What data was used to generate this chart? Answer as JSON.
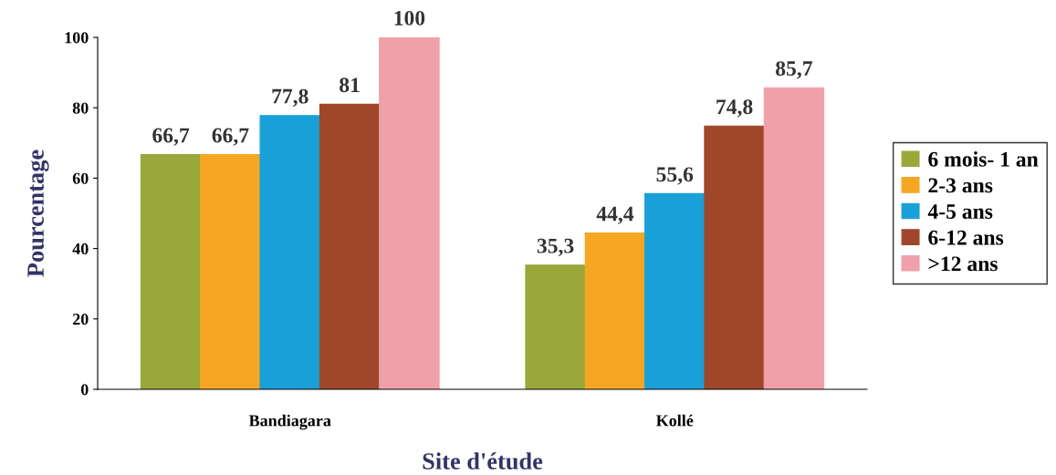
{
  "chart_data": {
    "type": "bar",
    "xlabel": "Site d'étude",
    "ylabel": "Pourcentage",
    "categories": [
      "Bandiagara",
      "Kollé"
    ],
    "series": [
      {
        "name": "6 mois- 1 an",
        "color": "#9aa83a",
        "values": [
          66.7,
          35.3
        ],
        "value_labels": [
          "66,7",
          "35,3"
        ]
      },
      {
        "name": "2-3 ans",
        "color": "#f5a623",
        "values": [
          66.7,
          44.4
        ],
        "value_labels": [
          "66,7",
          "44,4"
        ]
      },
      {
        "name": "4-5 ans",
        "color": "#1aa0d8",
        "values": [
          77.8,
          55.6
        ],
        "value_labels": [
          "77,8",
          "55,6"
        ]
      },
      {
        "name": "6-12 ans",
        "color": "#a0472a",
        "values": [
          81,
          74.8
        ],
        "value_labels": [
          "81",
          "74,8"
        ]
      },
      {
        "name": ">12 ans",
        "color": "#f0a0a8",
        "values": [
          100,
          85.7
        ],
        "value_labels": [
          "100",
          "85,7"
        ]
      }
    ],
    "ylim": [
      0,
      100
    ],
    "yticks": [
      0,
      20,
      40,
      60,
      80,
      100
    ],
    "grid": false,
    "legend": "right"
  }
}
